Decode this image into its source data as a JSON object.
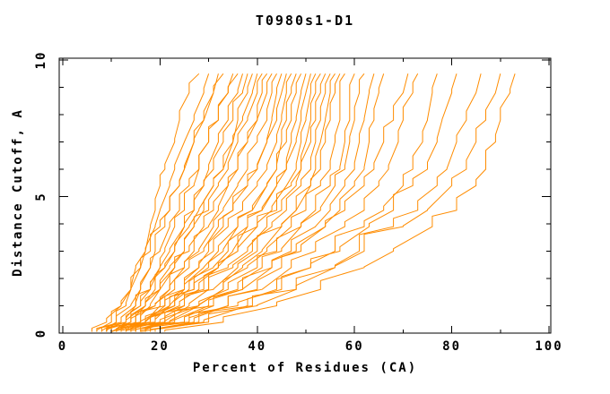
{
  "title": "T0980s1-D1",
  "axes": {
    "x": {
      "label": "Percent of Residues (CA)",
      "min": 0,
      "max": 100,
      "major_ticks": [
        0,
        20,
        40,
        60,
        80,
        100
      ],
      "minor_ticks": [
        10,
        30,
        50,
        70,
        90
      ]
    },
    "y": {
      "label": "Distance Cutoff, A",
      "min": 0,
      "max": 10,
      "major_ticks": [
        0,
        5,
        10
      ],
      "minor_ticks": [
        1,
        2,
        3,
        4,
        6,
        7,
        8,
        9
      ]
    }
  },
  "colors": {
    "curve": "#ff8c00",
    "axis": "#000000",
    "background": "#ffffff"
  },
  "chart_data": {
    "type": "line",
    "title": "T0980s1-D1",
    "xlabel": "Percent of Residues (CA)",
    "ylabel": "Distance Cutoff, A",
    "xlim": [
      0,
      101.5
    ],
    "ylim": [
      0,
      10.1
    ],
    "grid": false,
    "legend": "none",
    "description": "Each curve is one model: percent of CA residues (x) predicted within each distance cutoff in Angstroms (y).",
    "y_levels": [
      0.05,
      0.4,
      1.0,
      1.6,
      2.4,
      3.0,
      3.9,
      4.5,
      5.4,
      6.0,
      7.0,
      7.8,
      8.8,
      9.5
    ],
    "series": [
      {
        "x": [
          9,
          11,
          13,
          14,
          16,
          17,
          18,
          19,
          20,
          21,
          23,
          24,
          26,
          28
        ]
      },
      {
        "x": [
          7,
          10,
          12,
          14,
          15,
          17,
          19,
          20,
          22,
          23,
          25,
          27,
          29,
          30
        ]
      },
      {
        "x": [
          11,
          13,
          15,
          16,
          18,
          19,
          21,
          22,
          24,
          25,
          27,
          29,
          31,
          32
        ]
      },
      {
        "x": [
          6,
          9,
          12,
          14,
          16,
          18,
          20,
          22,
          24,
          25,
          27,
          29,
          31,
          33
        ]
      },
      {
        "x": [
          12,
          14,
          16,
          18,
          20,
          21,
          23,
          25,
          27,
          28,
          30,
          32,
          34,
          35
        ]
      },
      {
        "x": [
          8,
          11,
          14,
          16,
          18,
          20,
          22,
          24,
          26,
          28,
          30,
          32,
          34,
          36
        ]
      },
      {
        "x": [
          13,
          15,
          17,
          19,
          21,
          23,
          25,
          27,
          29,
          30,
          32,
          34,
          36,
          37
        ]
      },
      {
        "x": [
          9,
          13,
          16,
          18,
          20,
          22,
          25,
          27,
          29,
          31,
          33,
          35,
          37,
          38
        ]
      },
      {
        "x": [
          14,
          16,
          18,
          20,
          23,
          25,
          27,
          29,
          31,
          33,
          35,
          36,
          38,
          39
        ]
      },
      {
        "x": [
          7,
          12,
          15,
          18,
          21,
          23,
          26,
          28,
          31,
          33,
          35,
          37,
          39,
          40
        ]
      },
      {
        "x": [
          10,
          14,
          17,
          20,
          22,
          25,
          27,
          30,
          32,
          34,
          36,
          38,
          40,
          41
        ]
      },
      {
        "x": [
          15,
          17,
          20,
          22,
          25,
          27,
          30,
          32,
          34,
          36,
          38,
          40,
          41,
          42
        ]
      },
      {
        "x": [
          8,
          13,
          17,
          20,
          23,
          26,
          29,
          31,
          34,
          36,
          38,
          40,
          42,
          43
        ]
      },
      {
        "x": [
          11,
          15,
          19,
          22,
          25,
          28,
          31,
          33,
          36,
          38,
          40,
          42,
          43,
          44
        ]
      },
      {
        "x": [
          16,
          19,
          22,
          25,
          28,
          30,
          33,
          35,
          38,
          40,
          42,
          43,
          44,
          45
        ]
      },
      {
        "x": [
          9,
          14,
          19,
          23,
          26,
          29,
          32,
          35,
          38,
          40,
          42,
          44,
          45,
          46
        ]
      },
      {
        "x": [
          12,
          17,
          21,
          25,
          28,
          31,
          34,
          37,
          40,
          42,
          44,
          45,
          46,
          47
        ]
      },
      {
        "x": [
          14,
          18,
          23,
          26,
          30,
          33,
          36,
          39,
          42,
          44,
          45,
          46,
          47,
          48
        ]
      },
      {
        "x": [
          10,
          16,
          21,
          25,
          29,
          32,
          36,
          39,
          42,
          44,
          46,
          47,
          48,
          49
        ]
      },
      {
        "x": [
          17,
          21,
          25,
          29,
          32,
          35,
          38,
          41,
          44,
          46,
          47,
          48,
          49,
          50
        ]
      },
      {
        "x": [
          11,
          17,
          23,
          27,
          31,
          34,
          38,
          41,
          44,
          46,
          48,
          49,
          50,
          51
        ]
      },
      {
        "x": [
          13,
          19,
          24,
          28,
          32,
          36,
          40,
          43,
          46,
          48,
          49,
          50,
          51,
          52
        ]
      },
      {
        "x": [
          15,
          21,
          26,
          30,
          34,
          38,
          42,
          45,
          48,
          49,
          50,
          51,
          52,
          53
        ]
      },
      {
        "x": [
          9,
          16,
          22,
          27,
          32,
          36,
          40,
          44,
          47,
          49,
          51,
          52,
          53,
          54
        ]
      },
      {
        "x": [
          12,
          19,
          25,
          30,
          35,
          39,
          43,
          46,
          49,
          51,
          52,
          53,
          54,
          55
        ]
      },
      {
        "x": [
          16,
          22,
          28,
          33,
          37,
          41,
          45,
          48,
          51,
          52,
          53,
          54,
          55,
          56
        ]
      },
      {
        "x": [
          10,
          18,
          25,
          31,
          36,
          40,
          45,
          48,
          51,
          53,
          54,
          55,
          56,
          57
        ]
      },
      {
        "x": [
          14,
          21,
          28,
          33,
          38,
          42,
          47,
          50,
          53,
          55,
          56,
          57,
          57,
          58
        ]
      },
      {
        "x": [
          18,
          25,
          31,
          36,
          41,
          45,
          49,
          52,
          55,
          57,
          58,
          59,
          59,
          60
        ]
      },
      {
        "x": [
          12,
          20,
          28,
          34,
          40,
          44,
          49,
          53,
          56,
          58,
          59,
          60,
          61,
          62
        ]
      },
      {
        "x": [
          15,
          23,
          31,
          37,
          43,
          47,
          52,
          55,
          58,
          60,
          61,
          62,
          63,
          64
        ]
      },
      {
        "x": [
          19,
          27,
          34,
          40,
          45,
          49,
          54,
          57,
          60,
          62,
          63,
          64,
          65,
          66
        ]
      },
      {
        "x": [
          13,
          22,
          30,
          37,
          43,
          48,
          54,
          58,
          62,
          64,
          66,
          68,
          70,
          71
        ]
      },
      {
        "x": [
          17,
          26,
          34,
          41,
          47,
          52,
          58,
          62,
          65,
          67,
          69,
          70,
          72,
          73
        ]
      },
      {
        "x": [
          20,
          29,
          38,
          45,
          51,
          56,
          62,
          66,
          70,
          72,
          74,
          75,
          76,
          77
        ]
      },
      {
        "x": [
          15,
          26,
          36,
          44,
          51,
          57,
          63,
          68,
          72,
          75,
          77,
          78,
          80,
          81
        ]
      },
      {
        "x": [
          18,
          30,
          40,
          48,
          56,
          61,
          68,
          73,
          77,
          79,
          81,
          83,
          85,
          86
        ]
      },
      {
        "x": [
          16,
          28,
          39,
          48,
          56,
          62,
          70,
          75,
          80,
          83,
          85,
          87,
          89,
          90
        ]
      },
      {
        "x": [
          21,
          33,
          44,
          53,
          62,
          68,
          76,
          81,
          85,
          87,
          89,
          90,
          92,
          93
        ]
      }
    ]
  }
}
